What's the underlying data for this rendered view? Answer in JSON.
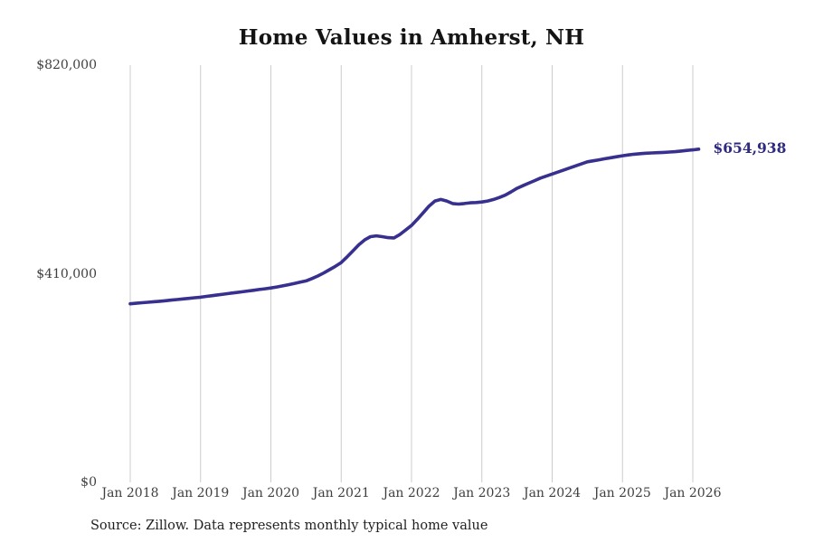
{
  "page": {
    "background": "#ffffff"
  },
  "source_note": "Source: Zillow. Data represents monthly typical home value",
  "chart_data": {
    "type": "line",
    "title": "Home Values in Amherst, NH",
    "xlabel": "",
    "ylabel": "",
    "ylim": [
      0,
      820000
    ],
    "grid": "vertical-gridlines-only",
    "gridline_color": "#cccccc",
    "axis_label_color": "#3f3f3f",
    "legend": "none",
    "end_label": "$654,938",
    "latest_value": 654938,
    "y_ticks": [
      {
        "label": "$0",
        "value": 0
      },
      {
        "label": "$410,000",
        "value": 410000
      },
      {
        "label": "$820,000",
        "value": 820000
      }
    ],
    "x_tick_labels": [
      "Jan 2018",
      "Jan 2019",
      "Jan 2020",
      "Jan 2021",
      "Jan 2022",
      "Jan 2023",
      "Jan 2024",
      "Jan 2025",
      "Jan 2026"
    ],
    "series": [
      {
        "name": "Monthly typical home value",
        "color": "#37308e",
        "x": [
          "2018-01",
          "2018-02",
          "2018-03",
          "2018-04",
          "2018-05",
          "2018-06",
          "2018-07",
          "2018-08",
          "2018-09",
          "2018-10",
          "2018-11",
          "2018-12",
          "2019-01",
          "2019-02",
          "2019-03",
          "2019-04",
          "2019-05",
          "2019-06",
          "2019-07",
          "2019-08",
          "2019-09",
          "2019-10",
          "2019-11",
          "2019-12",
          "2020-01",
          "2020-02",
          "2020-03",
          "2020-04",
          "2020-05",
          "2020-06",
          "2020-07",
          "2020-08",
          "2020-09",
          "2020-10",
          "2020-11",
          "2020-12",
          "2021-01",
          "2021-02",
          "2021-03",
          "2021-04",
          "2021-05",
          "2021-06",
          "2021-07",
          "2021-08",
          "2021-09",
          "2021-10",
          "2021-11",
          "2021-12",
          "2022-01",
          "2022-02",
          "2022-03",
          "2022-04",
          "2022-05",
          "2022-06",
          "2022-07",
          "2022-08",
          "2022-09",
          "2022-10",
          "2022-11",
          "2022-12",
          "2023-01",
          "2023-02",
          "2023-03",
          "2023-04",
          "2023-05",
          "2023-06",
          "2023-07",
          "2023-08",
          "2023-09",
          "2023-10",
          "2023-11",
          "2023-12",
          "2024-01",
          "2024-02",
          "2024-03",
          "2024-04",
          "2024-05",
          "2024-06",
          "2024-07",
          "2024-08",
          "2024-09",
          "2024-10",
          "2024-11",
          "2024-12",
          "2025-01",
          "2025-02",
          "2025-03",
          "2025-04",
          "2025-05",
          "2025-06",
          "2025-07",
          "2025-08",
          "2025-09",
          "2025-10",
          "2025-11",
          "2025-12",
          "2026-01",
          "2026-02"
        ],
        "values": [
          351000,
          352000,
          353000,
          354000,
          355000,
          356000,
          357000,
          358200,
          359300,
          360500,
          361600,
          362800,
          364000,
          365500,
          367000,
          368500,
          370000,
          371500,
          373000,
          374500,
          376000,
          377500,
          379000,
          380500,
          382000,
          384000,
          386200,
          388500,
          391000,
          393500,
          396000,
          400500,
          405500,
          411500,
          418000,
          424500,
          432000,
          443000,
          455000,
          467000,
          476500,
          483000,
          484500,
          483000,
          481000,
          480500,
          487000,
          496000,
          505000,
          517000,
          530000,
          543000,
          553000,
          556000,
          553000,
          548000,
          547000,
          548000,
          549500,
          550000,
          551000,
          553000,
          556000,
          560000,
          564500,
          571000,
          578000,
          583000,
          588000,
          593000,
          598000,
          602000,
          606000,
          610000,
          614000,
          618000,
          622000,
          626000,
          630000,
          632000,
          634000,
          636000,
          638000,
          640000,
          642000,
          643500,
          645000,
          646000,
          647000,
          647500,
          648000,
          648500,
          649200,
          650000,
          651200,
          652500,
          653500,
          654938
        ]
      }
    ]
  }
}
